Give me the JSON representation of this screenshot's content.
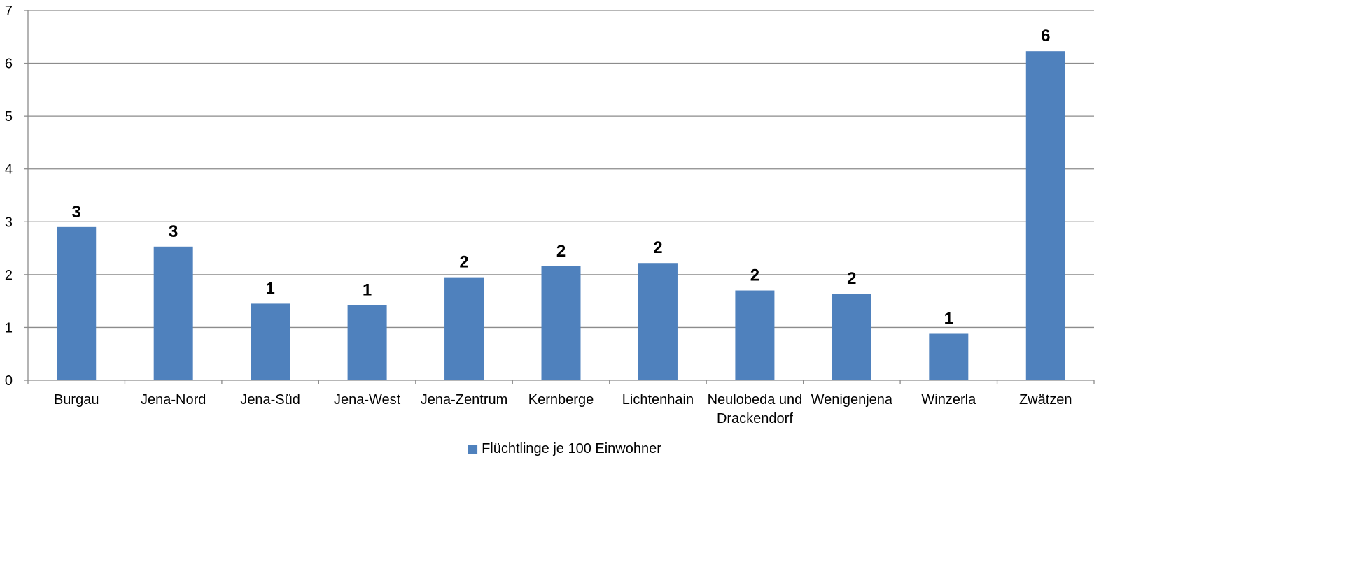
{
  "chart_data": {
    "type": "bar",
    "categories": [
      [
        "Burgau"
      ],
      [
        "Jena-Nord"
      ],
      [
        "Jena-Süd"
      ],
      [
        "Jena-West"
      ],
      [
        "Jena-Zentrum"
      ],
      [
        "Kernberge"
      ],
      [
        "Lichtenhain"
      ],
      [
        "Neulobeda und",
        "Drackendorf"
      ],
      [
        "Wenigenjena"
      ],
      [
        "Winzerla"
      ],
      [
        "Zwätzen"
      ]
    ],
    "series": [
      {
        "name": "Flüchtlinge je 100 Einwohner",
        "values": [
          2.9,
          2.53,
          1.45,
          1.42,
          1.95,
          2.16,
          2.22,
          1.7,
          1.64,
          0.88,
          6.23
        ],
        "data_labels": [
          "3",
          "3",
          "1",
          "1",
          "2",
          "2",
          "2",
          "2",
          "2",
          "1",
          "6"
        ],
        "color": "#4F81BD"
      }
    ],
    "ylim": [
      0,
      7
    ],
    "yticks": [
      "0",
      "1",
      "2",
      "3",
      "4",
      "5",
      "6",
      "7"
    ],
    "grid": true,
    "legend_position": "bottom",
    "title": "",
    "xlabel": "",
    "ylabel": ""
  }
}
